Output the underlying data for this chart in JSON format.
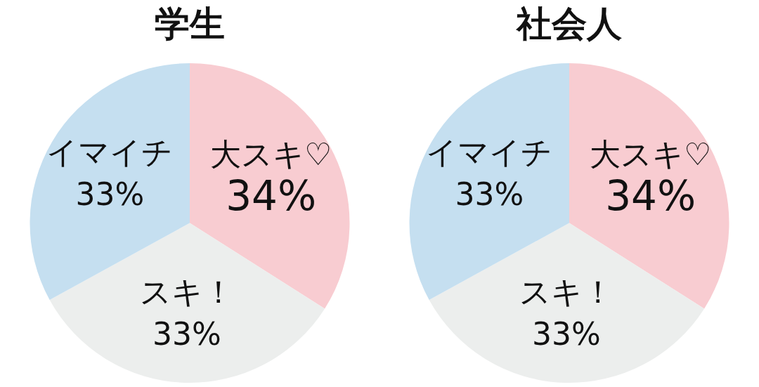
{
  "chart_data": [
    {
      "type": "pie",
      "title": "学生",
      "categories": [
        "大スキ♡",
        "スキ！",
        "イマイチ"
      ],
      "values": [
        34,
        33,
        33
      ],
      "colors": [
        "#f8ccd1",
        "#eceeed",
        "#c5dff0"
      ],
      "value_labels": [
        "34%",
        "33%",
        "33%"
      ],
      "legend": false
    },
    {
      "type": "pie",
      "title": "社会人",
      "categories": [
        "大スキ♡",
        "スキ！",
        "イマイチ"
      ],
      "values": [
        34,
        33,
        33
      ],
      "colors": [
        "#f8ccd1",
        "#eceeed",
        "#c5dff0"
      ],
      "value_labels": [
        "34%",
        "33%",
        "33%"
      ],
      "legend": false
    }
  ]
}
